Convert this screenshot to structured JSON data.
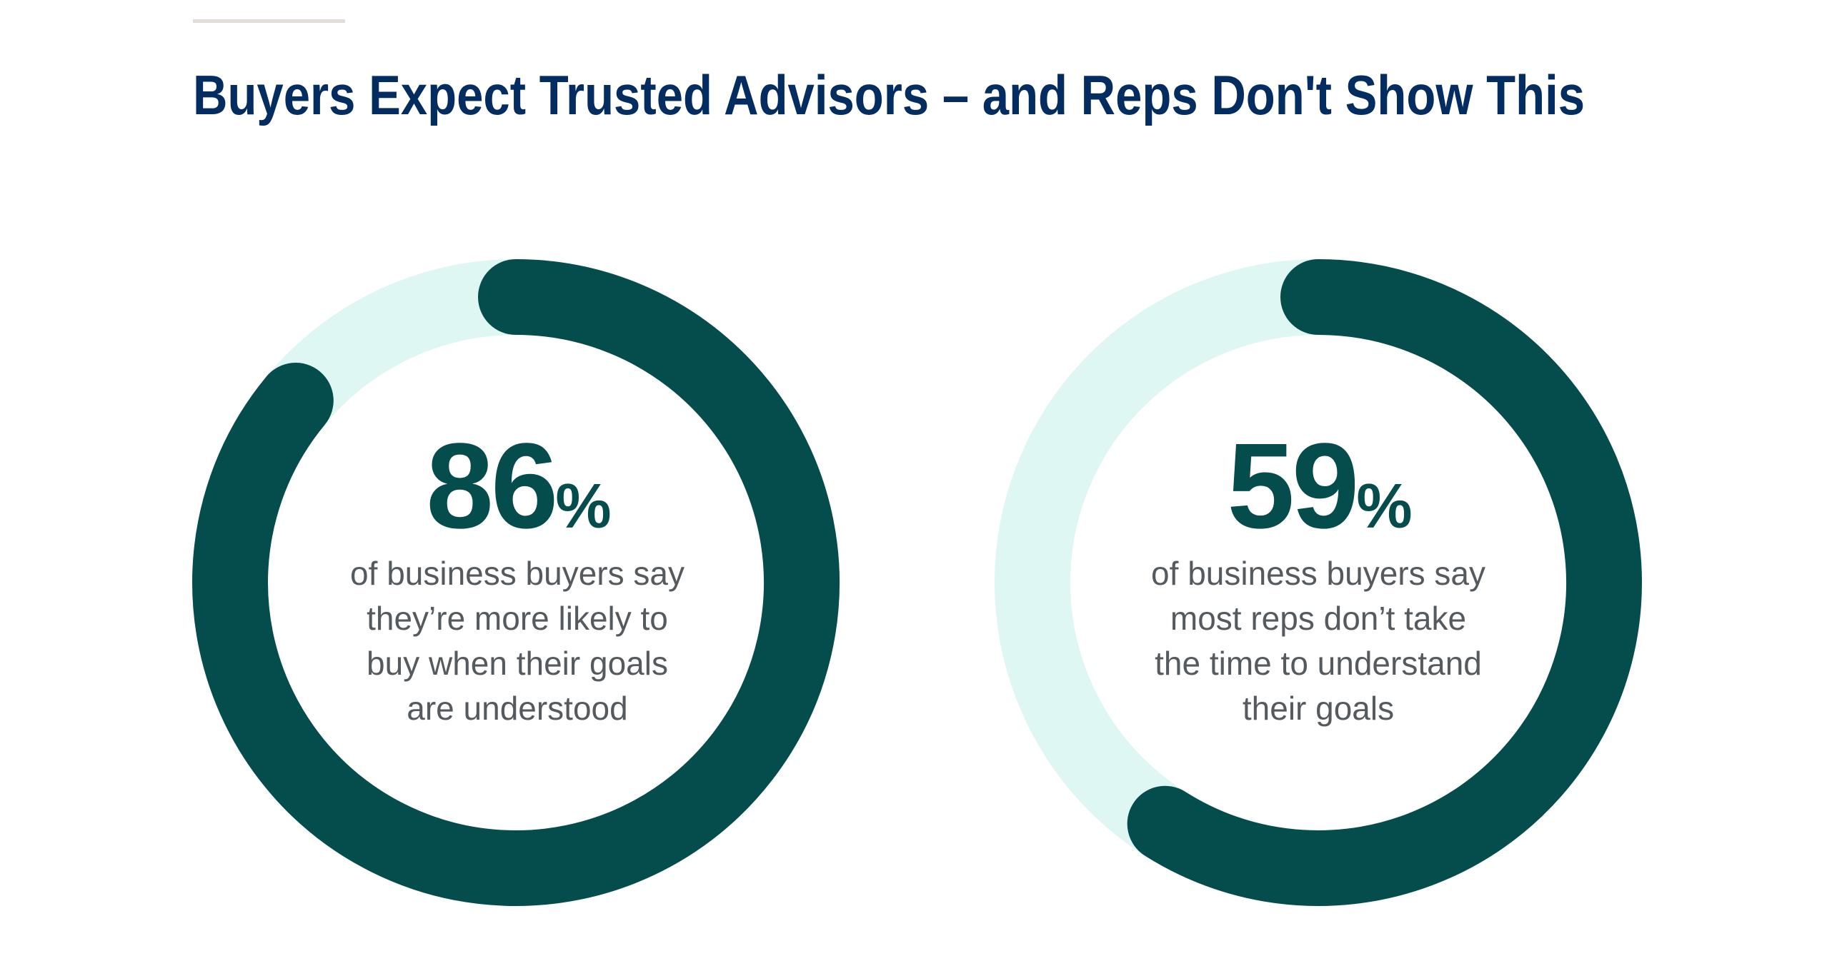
{
  "title": "Buyers Expect Trusted Advisors – and Reps Don't Show This",
  "colors": {
    "title": "#032d60",
    "arc": "#054d4c",
    "track": "#def7f2",
    "text": "#555a5f"
  },
  "chart_data": [
    {
      "type": "pie",
      "variant": "donut",
      "value": 86,
      "max": 100,
      "label": "86",
      "suffix": "%",
      "description": [
        "of business buyers say",
        "they’re more likely to",
        "buy when their goals",
        "are understood"
      ]
    },
    {
      "type": "pie",
      "variant": "donut",
      "value": 59,
      "max": 100,
      "label": "59",
      "suffix": "%",
      "description": [
        "of business buyers say",
        "most reps don’t take",
        "the time to understand",
        "their goals"
      ]
    }
  ]
}
